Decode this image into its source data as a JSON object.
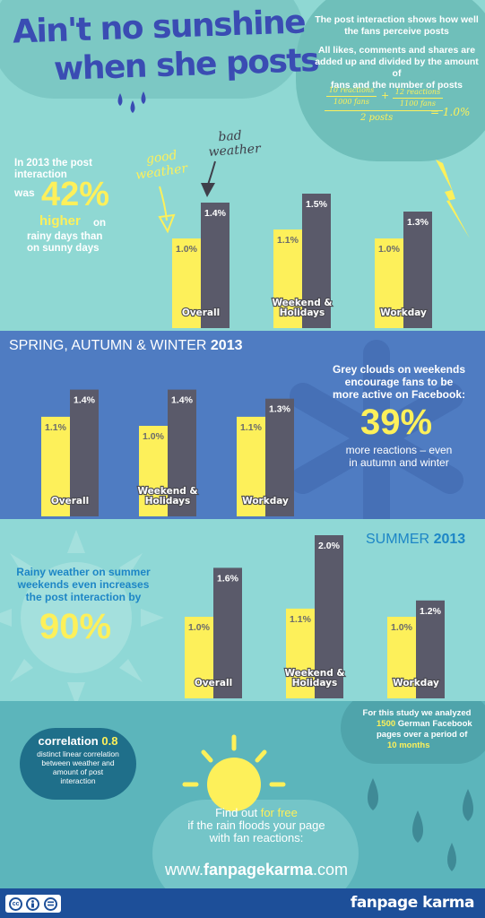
{
  "header": {
    "title_line1": "Ain't no sunshine",
    "title_line2": "when she posts",
    "info_line1": "The post interaction shows how well",
    "info_line2": "the fans perceive posts",
    "info_line3": "All likes, comments and shares are",
    "info_line4": "added up and divided by the amount of",
    "info_line5": "fans and the number of posts",
    "formula": {
      "num1_top": "10 reactions",
      "num1_bottom": "1000 fans",
      "plus": "+",
      "num2_top": "12 reactions",
      "num2_bottom": "1100 fans",
      "denominator": "2 posts",
      "result": "= 1.0%"
    }
  },
  "section1": {
    "intro_line1": "In 2013 the post",
    "intro_line2": "interaction",
    "intro_was": "was",
    "stat": "42%",
    "stat_word": "higher",
    "stat_on": "on",
    "intro_line4": "rainy days than",
    "intro_line5": "on sunny days",
    "good_weather_1": "good",
    "good_weather_2": "weather",
    "bad_weather_1": "bad",
    "bad_weather_2": "weather"
  },
  "section2": {
    "title": "SPRING, AUTUMN & WINTER",
    "title_year": "2013",
    "text_line1": "Grey clouds on weekends",
    "text_line2": "encourage fans to be",
    "text_line3": "more active on Facebook:",
    "stat": "39%",
    "text_line4": "more reactions – even",
    "text_line5": "in autumn and winter"
  },
  "section3": {
    "title": "SUMMER",
    "title_year": "2013",
    "text_line1": "Rainy weather on summer",
    "text_line2": "weekends even increases",
    "text_line3": "the post interaction by",
    "stat": "90%"
  },
  "section4": {
    "study_line1": "For this study we analyzed",
    "study_num": "1500",
    "study_line2": "German Facebook",
    "study_line3": "pages over a period of",
    "study_months": "10 months",
    "corr_label": "correlation",
    "corr_value": "0.8",
    "corr_line1": "distinct linear correlation",
    "corr_line2": "between weather and",
    "corr_line3": "amount of post",
    "corr_line4": "interaction",
    "cta_line1": "Find out",
    "cta_free": "for free",
    "cta_line2": "if the rain floods your page",
    "cta_line3": "with fan reactions:",
    "url_prefix": "www.",
    "url_bold": "fanpagekarma",
    "url_suffix": ".com"
  },
  "footer": {
    "cc_icons": [
      "cc-icon",
      "by-icon",
      "nd-icon"
    ],
    "brand": "fanpage karma"
  },
  "colors": {
    "sunny": "#fdf05a",
    "rainy": "#5a5a6a",
    "title_blue": "#3a4cb3",
    "accent_yellow": "#fdf05a"
  },
  "chart_data": [
    {
      "type": "bar",
      "title": "",
      "categories": [
        "Overall",
        "Weekend & Holidays",
        "Workday"
      ],
      "series": [
        {
          "name": "good weather",
          "values": [
            1.0,
            1.1,
            1.0
          ],
          "labels": [
            "1.0%",
            "1.1%",
            "1.0%"
          ]
        },
        {
          "name": "bad weather",
          "values": [
            1.4,
            1.5,
            1.3
          ],
          "labels": [
            "1.4%",
            "1.5%",
            "1.3%"
          ]
        }
      ],
      "ylim": [
        0,
        1.6
      ]
    },
    {
      "type": "bar",
      "title": "SPRING, AUTUMN & WINTER 2013",
      "categories": [
        "Overall",
        "Weekend & Holidays",
        "Workday"
      ],
      "series": [
        {
          "name": "good weather",
          "values": [
            1.1,
            1.0,
            1.1
          ],
          "labels": [
            "1.1%",
            "1.0%",
            "1.1%"
          ]
        },
        {
          "name": "bad weather",
          "values": [
            1.4,
            1.4,
            1.3
          ],
          "labels": [
            "1.4%",
            "1.4%",
            "1.3%"
          ]
        }
      ],
      "ylim": [
        0,
        1.5
      ]
    },
    {
      "type": "bar",
      "title": "SUMMER 2013",
      "categories": [
        "Overall",
        "Weekend & Holidays",
        "Workday"
      ],
      "series": [
        {
          "name": "good weather",
          "values": [
            1.0,
            1.1,
            1.0
          ],
          "labels": [
            "1.0%",
            "1.1%",
            "1.0%"
          ]
        },
        {
          "name": "bad weather",
          "values": [
            1.6,
            2.0,
            1.2
          ],
          "labels": [
            "1.6%",
            "2.0%",
            "1.2%"
          ]
        }
      ],
      "ylim": [
        0,
        2.1
      ]
    }
  ]
}
